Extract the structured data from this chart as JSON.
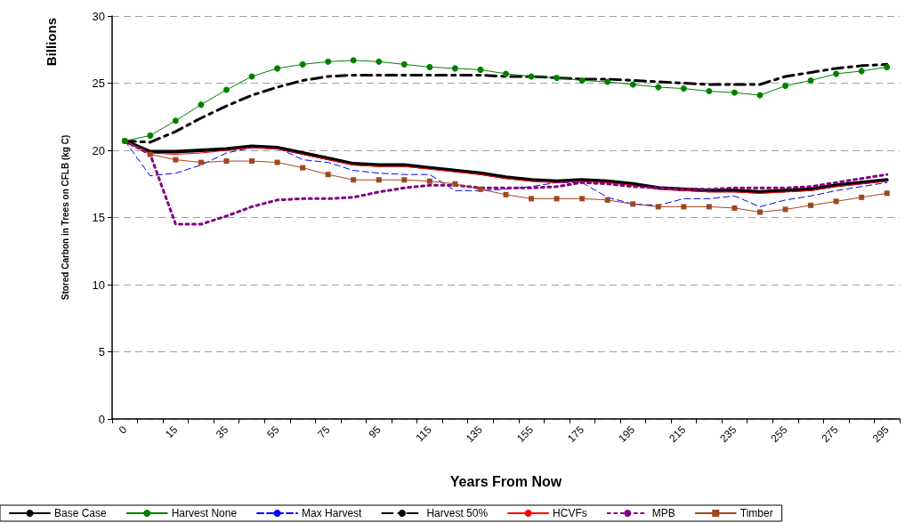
{
  "chart_data": {
    "type": "line",
    "xlabel": "Years From Now",
    "ylabel": "Stored Carbon in Trees on CFLB (kg C)",
    "annotations": [
      "Billions"
    ],
    "categories": [
      "0",
      null,
      "15",
      null,
      "35",
      null,
      "55",
      null,
      "75",
      null,
      "95",
      null,
      "115",
      null,
      "135",
      null,
      "155",
      null,
      "175",
      null,
      "195",
      null,
      "215",
      null,
      "235",
      null,
      "255",
      null,
      "275",
      null,
      "295"
    ],
    "ylim": [
      0,
      30
    ],
    "yticks": [
      0,
      5,
      10,
      15,
      20,
      25,
      30
    ],
    "grid": "y",
    "legend": "bottom",
    "marker": "none",
    "line_style": "solid",
    "series": [
      {
        "name": "Base Case",
        "color": "#000000",
        "values": [
          20.7,
          19.9,
          19.9,
          20.0,
          20.1,
          20.3,
          20.2,
          19.8,
          19.4,
          19.0,
          18.9,
          18.9,
          18.7,
          18.5,
          18.3,
          18.0,
          17.8,
          17.7,
          17.8,
          17.7,
          17.5,
          17.2,
          17.1,
          17.0,
          17.0,
          16.9,
          17.0,
          17.1,
          17.4,
          17.6,
          17.8
        ]
      },
      {
        "name": "Harvest None",
        "color": "#008000",
        "marker": "circle",
        "values": [
          20.7,
          21.1,
          22.2,
          23.4,
          24.5,
          25.5,
          26.1,
          26.4,
          26.6,
          26.7,
          26.6,
          26.4,
          26.2,
          26.1,
          26.0,
          25.7,
          25.5,
          25.4,
          25.2,
          25.1,
          24.9,
          24.7,
          24.6,
          24.4,
          24.3,
          24.1,
          24.8,
          25.2,
          25.7,
          25.9,
          26.2
        ]
      },
      {
        "name": "Max Harvest",
        "color": "#0000ff",
        "line_style": "dashed",
        "values": [
          20.7,
          18.1,
          18.3,
          18.9,
          19.8,
          20.2,
          20.2,
          19.3,
          19.1,
          18.5,
          18.3,
          18.2,
          18.2,
          17.0,
          17.0,
          17.1,
          17.3,
          17.6,
          17.6,
          16.5,
          16.0,
          15.9,
          16.4,
          16.4,
          16.6,
          15.8,
          16.3,
          16.6,
          17.0,
          17.3,
          17.6
        ]
      },
      {
        "name": "Harvest 50%",
        "color": "#000000",
        "line_style": "dashed",
        "values": [
          20.7,
          20.6,
          21.4,
          22.4,
          23.3,
          24.1,
          24.7,
          25.2,
          25.5,
          25.6,
          25.6,
          25.6,
          25.6,
          25.6,
          25.6,
          25.5,
          25.5,
          25.4,
          25.3,
          25.3,
          25.2,
          25.1,
          25.0,
          24.9,
          24.9,
          24.9,
          25.5,
          25.8,
          26.1,
          26.3,
          26.4
        ]
      },
      {
        "name": "HCVFs",
        "color": "#ff0000",
        "values": [
          20.7,
          19.8,
          19.7,
          19.8,
          20.0,
          20.2,
          20.1,
          19.7,
          19.3,
          18.9,
          18.8,
          18.8,
          18.6,
          18.4,
          18.2,
          17.9,
          17.7,
          17.6,
          17.7,
          17.6,
          17.4,
          17.1,
          17.0,
          16.9,
          16.9,
          16.8,
          16.9,
          17.0,
          17.3,
          17.5,
          17.7
        ]
      },
      {
        "name": "MPB",
        "color": "#800080",
        "line_style": "dotted",
        "values": [
          20.7,
          19.7,
          14.5,
          14.5,
          15.1,
          15.8,
          16.3,
          16.4,
          16.4,
          16.5,
          16.9,
          17.2,
          17.4,
          17.4,
          17.2,
          17.2,
          17.2,
          17.3,
          17.6,
          17.5,
          17.3,
          17.2,
          17.1,
          17.1,
          17.2,
          17.2,
          17.2,
          17.3,
          17.6,
          17.9,
          18.2
        ]
      },
      {
        "name": "Timber",
        "color": "#a0461e",
        "marker": "square",
        "values": [
          20.7,
          19.7,
          19.3,
          19.1,
          19.2,
          19.2,
          19.1,
          18.7,
          18.2,
          17.8,
          17.8,
          17.8,
          17.7,
          17.5,
          17.1,
          16.7,
          16.4,
          16.4,
          16.4,
          16.3,
          16.0,
          15.8,
          15.8,
          15.8,
          15.7,
          15.4,
          15.6,
          15.9,
          16.2,
          16.5,
          16.8
        ]
      }
    ]
  }
}
